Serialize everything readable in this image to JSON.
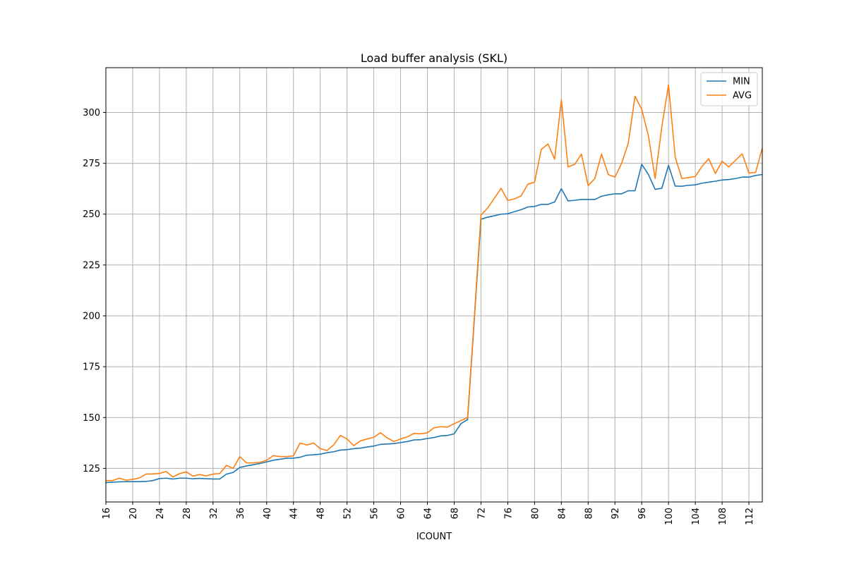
{
  "chart_data": {
    "type": "line",
    "title": "Load buffer analysis (SKL)",
    "xlabel": "ICOUNT",
    "ylabel": "",
    "xlim": [
      16,
      114
    ],
    "ylim": [
      108.5,
      322
    ],
    "grid": true,
    "legend_position": "top-right",
    "x_ticks": [
      16,
      20,
      24,
      28,
      32,
      36,
      40,
      44,
      48,
      52,
      56,
      60,
      64,
      68,
      72,
      76,
      80,
      84,
      88,
      92,
      96,
      100,
      104,
      108,
      112
    ],
    "y_ticks": [
      125,
      150,
      175,
      200,
      225,
      250,
      275,
      300
    ],
    "x": [
      16,
      17,
      18,
      19,
      20,
      21,
      22,
      23,
      24,
      25,
      26,
      27,
      28,
      29,
      30,
      31,
      32,
      33,
      34,
      35,
      36,
      37,
      38,
      39,
      40,
      41,
      42,
      43,
      44,
      45,
      46,
      47,
      48,
      49,
      50,
      51,
      52,
      53,
      54,
      55,
      56,
      57,
      58,
      59,
      60,
      61,
      62,
      63,
      64,
      65,
      66,
      67,
      68,
      69,
      70,
      71,
      72,
      73,
      74,
      75,
      76,
      77,
      78,
      79,
      80,
      81,
      82,
      83,
      84,
      85,
      86,
      87,
      88,
      89,
      90,
      91,
      92,
      93,
      94,
      95,
      96,
      97,
      98,
      99,
      100,
      101,
      102,
      103,
      104,
      105,
      106,
      107,
      108,
      109,
      110,
      111,
      112,
      113,
      114
    ],
    "series": [
      {
        "name": "MIN",
        "color": "#1f77b4",
        "values": [
          118.0,
          118.2,
          118.4,
          118.5,
          118.5,
          118.5,
          118.6,
          119.0,
          120.0,
          120.2,
          119.8,
          120.2,
          120.2,
          119.9,
          120.1,
          119.9,
          119.8,
          119.8,
          122.2,
          123.0,
          125.5,
          126.2,
          126.8,
          127.4,
          128.2,
          129.0,
          129.5,
          130.0,
          130.0,
          130.5,
          131.5,
          131.7,
          132.0,
          132.7,
          133.2,
          134.0,
          134.2,
          134.7,
          135.0,
          135.5,
          136.0,
          136.8,
          137.0,
          137.2,
          137.7,
          138.2,
          139.0,
          139.1,
          139.7,
          140.2,
          141.0,
          141.2,
          142.0,
          147.0,
          149.0,
          198.0,
          247.5,
          248.5,
          249.2,
          250.0,
          250.2,
          251.2,
          252.2,
          253.5,
          253.8,
          254.8,
          254.8,
          256.0,
          262.5,
          256.5,
          256.8,
          257.2,
          257.2,
          257.2,
          258.8,
          259.5,
          260.0,
          260.0,
          261.5,
          261.5,
          274.5,
          269.5,
          262.2,
          262.7,
          274.0,
          263.8,
          263.7,
          264.2,
          264.4,
          265.2,
          265.7,
          266.2,
          266.8,
          267.0,
          267.5,
          268.2,
          268.2,
          269.0,
          269.5
        ]
      },
      {
        "name": "AVG",
        "color": "#ff7f0e",
        "values": [
          119.0,
          119.0,
          120.2,
          119.2,
          119.6,
          120.3,
          122.2,
          122.3,
          122.5,
          123.5,
          120.8,
          122.4,
          123.3,
          121.2,
          122.0,
          121.3,
          122.2,
          122.5,
          126.5,
          125.0,
          130.8,
          127.7,
          127.7,
          128.0,
          129.0,
          131.3,
          130.8,
          130.8,
          131.2,
          137.5,
          136.5,
          137.5,
          134.7,
          133.8,
          136.5,
          141.2,
          139.5,
          136.2,
          138.5,
          139.5,
          140.3,
          142.5,
          140.0,
          138.2,
          139.5,
          140.5,
          142.2,
          142.0,
          142.5,
          145.0,
          145.5,
          145.3,
          147.0,
          148.5,
          150.0,
          199.0,
          249.5,
          253.0,
          257.8,
          262.7,
          256.7,
          257.5,
          259.0,
          264.7,
          265.7,
          281.8,
          284.5,
          277.0,
          306.2,
          273.2,
          274.5,
          279.5,
          264.0,
          267.5,
          279.5,
          269.5,
          268.2,
          275.0,
          285.0,
          308.0,
          301.5,
          288.5,
          267.5,
          293.0,
          313.5,
          278.0,
          267.5,
          268.0,
          268.5,
          273.5,
          277.2,
          270.0,
          276.0,
          273.2,
          276.5,
          279.7,
          270.2,
          270.5,
          282.5
        ]
      }
    ]
  }
}
